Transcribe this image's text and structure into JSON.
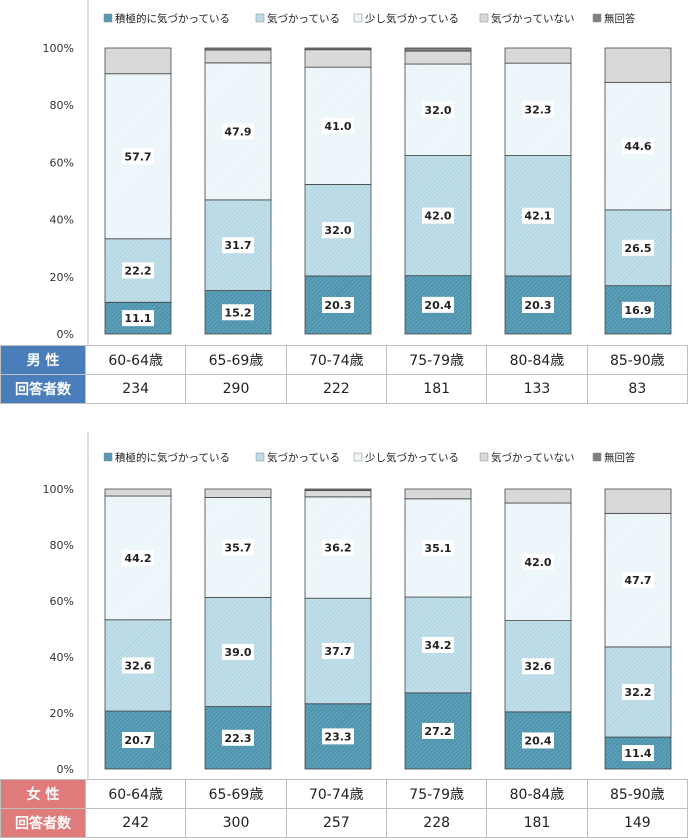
{
  "legend": [
    "積極的に気づかっている",
    "気づかっている",
    "少し気づかっている",
    "気づかっていない",
    "無回答"
  ],
  "y_tick_labels": [
    "0%",
    "20%",
    "40%",
    "60%",
    "80%",
    "100%"
  ],
  "colors": {
    "s1": "#5b9fb8",
    "s2": "#c2dfe9",
    "s3": "#f1f8fb",
    "s4": "#d9d9d9",
    "s5": "#7f7f7f",
    "border": "#444444"
  },
  "chart_data": [
    {
      "type": "bar",
      "stacked": true,
      "group": "男 性",
      "categories": [
        "60-64歳",
        "65-69歳",
        "70-74歳",
        "75-79歳",
        "80-84歳",
        "85-90歳"
      ],
      "ylim": [
        0,
        100
      ],
      "series": [
        {
          "name": "積極的に気づかっている",
          "values": [
            11.1,
            15.2,
            20.3,
            20.4,
            20.3,
            16.9
          ]
        },
        {
          "name": "気づかっている",
          "values": [
            22.2,
            31.7,
            32.0,
            42.0,
            42.1,
            26.5
          ]
        },
        {
          "name": "少し気づかっている",
          "values": [
            57.7,
            47.9,
            41.0,
            32.0,
            32.3,
            44.6
          ]
        },
        {
          "name": "気づかっていない",
          "values": [
            9.0,
            4.5,
            6.1,
            4.5,
            5.3,
            12.0
          ]
        },
        {
          "name": "無回答",
          "values": [
            0,
            0.7,
            0.6,
            1.1,
            0,
            0
          ]
        }
      ],
      "data_labels": [
        [
          "11.1",
          "15.2",
          "20.3",
          "20.4",
          "20.3",
          "16.9"
        ],
        [
          "22.2",
          "31.7",
          "32.0",
          "42.0",
          "42.1",
          "26.5"
        ],
        [
          "57.7",
          "47.9",
          "41.0",
          "32.0",
          "32.3",
          "44.6"
        ]
      ]
    },
    {
      "type": "bar",
      "stacked": true,
      "group": "女 性",
      "categories": [
        "60-64歳",
        "65-69歳",
        "70-74歳",
        "75-79歳",
        "80-84歳",
        "85-90歳"
      ],
      "ylim": [
        0,
        100
      ],
      "series": [
        {
          "name": "積極的に気づかっている",
          "values": [
            20.7,
            22.3,
            23.3,
            27.2,
            20.4,
            11.4
          ]
        },
        {
          "name": "気づかっている",
          "values": [
            32.6,
            39.0,
            37.7,
            34.2,
            32.6,
            32.2
          ]
        },
        {
          "name": "少し気づかっている",
          "values": [
            44.2,
            35.7,
            36.2,
            35.1,
            42.0,
            47.7
          ]
        },
        {
          "name": "気づかっていない",
          "values": [
            2.5,
            3.0,
            2.3,
            3.5,
            5.0,
            8.7
          ]
        },
        {
          "name": "無回答",
          "values": [
            0,
            0,
            0.5,
            0,
            0,
            0
          ]
        }
      ],
      "data_labels": [
        [
          "20.7",
          "22.3",
          "23.3",
          "27.2",
          "20.4",
          "11.4"
        ],
        [
          "32.6",
          "39.0",
          "37.7",
          "34.2",
          "32.6",
          "32.2"
        ],
        [
          "44.2",
          "35.7",
          "36.2",
          "35.1",
          "42.0",
          "47.7"
        ]
      ]
    }
  ],
  "tables": [
    {
      "group_label": "男 性",
      "count_label": "回答者数",
      "ages": [
        "60-64歳",
        "65-69歳",
        "70-74歳",
        "75-79歳",
        "80-84歳",
        "85-90歳"
      ],
      "counts": [
        "234",
        "290",
        "222",
        "181",
        "133",
        "83"
      ]
    },
    {
      "group_label": "女 性",
      "count_label": "回答者数",
      "ages": [
        "60-64歳",
        "65-69歳",
        "70-74歳",
        "75-79歳",
        "80-84歳",
        "85-90歳"
      ],
      "counts": [
        "242",
        "300",
        "257",
        "228",
        "181",
        "149"
      ]
    }
  ]
}
